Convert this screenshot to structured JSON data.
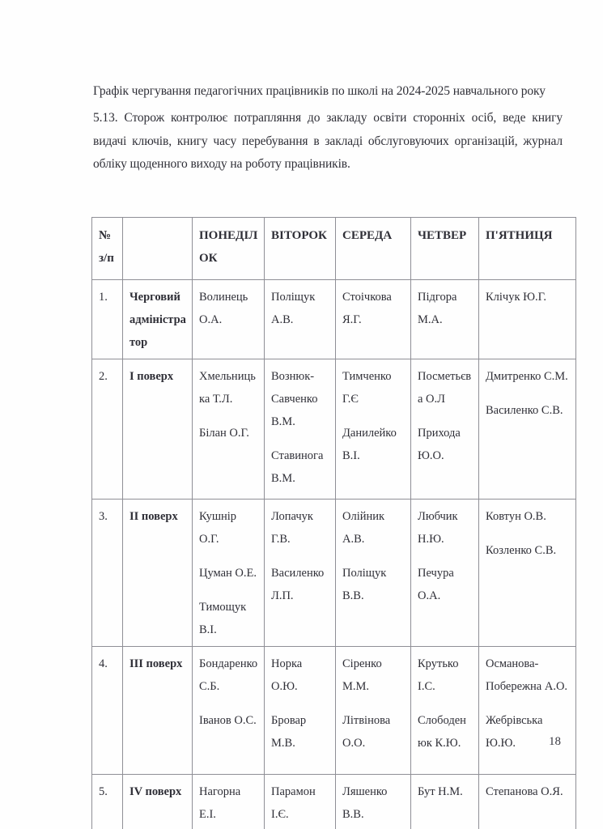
{
  "page": {
    "title": "Графік чергування педагогічних працівників по школі на 2024-2025 навчального року",
    "paragraph_513": "5.13. Сторож контролює потрапляння до закладу освіти сторонніх осіб, веде книгу видачі ключів, книгу часу перебування в закладі обслуговуючих організацій, журнал обліку щоденного виходу на роботу працівників.",
    "page_number": "18"
  },
  "schedule_table": {
    "columns": [
      "№ з/п",
      "",
      "ПОНЕДІЛОК",
      "ВІТОРОК",
      "СЕРЕДА",
      "ЧЕТВЕР",
      "П'ЯТНИЦЯ"
    ],
    "column_keys": [
      "num",
      "area",
      "monday",
      "tuesday",
      "wednesday",
      "thursday",
      "friday"
    ],
    "rows": [
      {
        "num": "1.",
        "area": "Черговий адміністратор",
        "monday": [
          "Волинець О.А."
        ],
        "tuesday": [
          "Поліщук А.В."
        ],
        "wednesday": [
          "Стоічкова Я.Г."
        ],
        "thursday": [
          "Підгора М.А."
        ],
        "friday": [
          "Клічук Ю.Г."
        ]
      },
      {
        "num": "2.",
        "area": "І поверх",
        "monday": [
          "Хмельницька Т.Л.",
          "Білан О.Г."
        ],
        "tuesday": [
          "Вознюк-Савченко В.М.",
          "Ставинога В.М."
        ],
        "wednesday": [
          "Тимченко Г.Є",
          "Данилейко В.І."
        ],
        "thursday": [
          "Посметьєва О.Л",
          "Прихода Ю.О."
        ],
        "friday": [
          "Дмитренко С.М.",
          "Василенко С.В."
        ]
      },
      {
        "num": "3.",
        "area": "ІІ поверх",
        "monday": [
          "Кушнір О.Г.",
          "Цуман О.Е.",
          "Тимощук В.І."
        ],
        "tuesday": [
          "Лопачук Г.В.",
          "Василенко Л.П."
        ],
        "wednesday": [
          "Олійник А.В.",
          "Поліщук В.В."
        ],
        "thursday": [
          "Любчик Н.Ю.",
          "Печура О.А."
        ],
        "friday": [
          "Ковтун О.В.",
          "Козленко С.В."
        ]
      },
      {
        "num": "4.",
        "area": "ІІІ поверх",
        "monday": [
          "Бондаренко С.Б.",
          "Іванов О.С."
        ],
        "tuesday": [
          "Норка О.Ю.",
          "Бровар М.В."
        ],
        "wednesday": [
          "Сіренко М.М.",
          "Літвінова О.О."
        ],
        "thursday": [
          "Крутько І.С.",
          "Слободенюк К.Ю."
        ],
        "friday": [
          "Османова-Побережна А.О.",
          "Жебрівська Ю.Ю."
        ]
      },
      {
        "num": "5.",
        "area": "IV поверх",
        "monday": [
          "Нагорна Е.І."
        ],
        "tuesday": [
          "Парамон І.Є."
        ],
        "wednesday": [
          "Ляшенко В.В."
        ],
        "thursday": [
          "Бут Н.М."
        ],
        "friday": [
          "Степанова О.Я."
        ]
      }
    ]
  },
  "colors": {
    "ink": "#2f2f37",
    "table_border": "#8f8f96",
    "paper": "#fefefe"
  }
}
